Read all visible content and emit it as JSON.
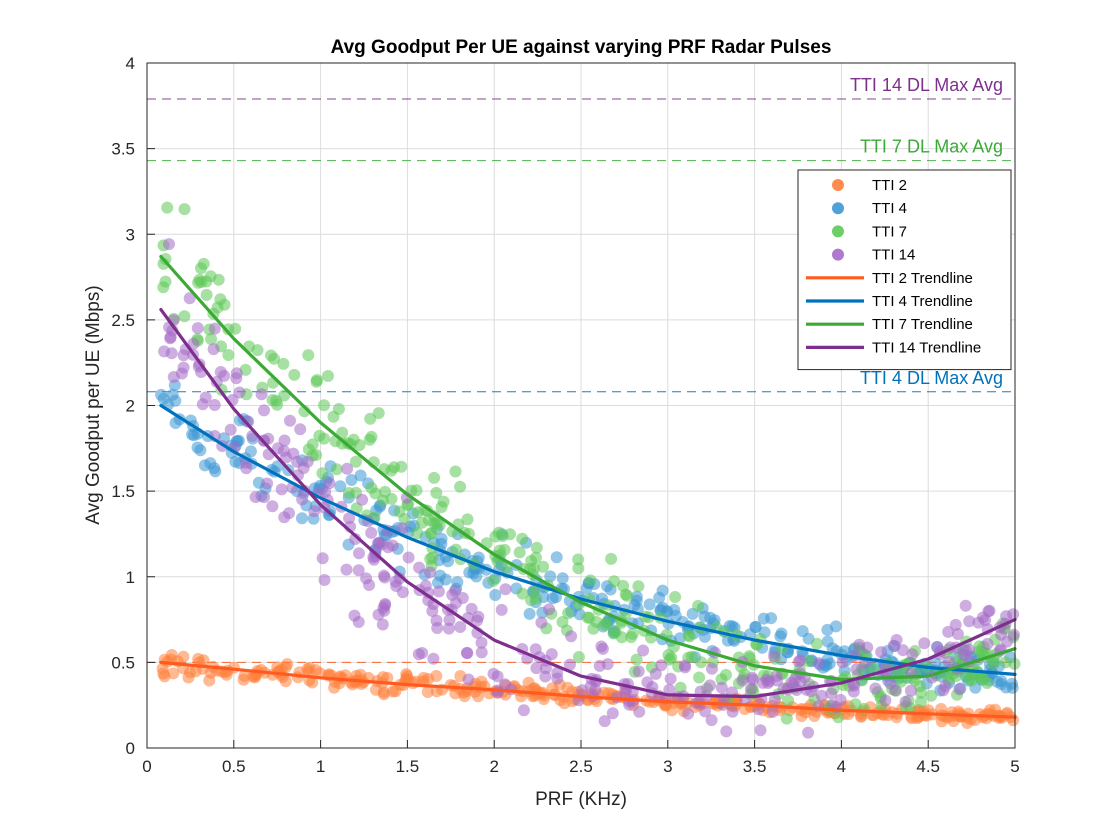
{
  "chart_data": {
    "type": "scatter",
    "title": "Avg Goodput Per UE against varying PRF Radar Pulses",
    "xlabel": "PRF (KHz)",
    "ylabel": "Avg Goodput per UE (Mbps)",
    "xlim": [
      0,
      5
    ],
    "ylim": [
      0,
      4
    ],
    "xticks": [
      "0",
      "0.5",
      "1",
      "1.5",
      "2",
      "2.5",
      "3",
      "3.5",
      "4",
      "4.5",
      "5"
    ],
    "yticks": [
      "0",
      "0.5",
      "1",
      "1.5",
      "2",
      "2.5",
      "3",
      "3.5",
      "4"
    ],
    "grid": true,
    "legend_position": "upper-right",
    "reference_lines": [
      {
        "label": "TTI 14 DL Max Avg",
        "y": 3.79,
        "color": "#7e2f8e"
      },
      {
        "label": "TTI 7 DL Max Avg",
        "y": 3.43,
        "color": "#3aaa35"
      },
      {
        "label": "TTI 4 DL Max Avg",
        "y": 2.08,
        "color": "#0072bd"
      },
      {
        "label": "",
        "y": 0.5,
        "color": "#ff5a1f"
      }
    ],
    "series": [
      {
        "name": "TTI 2",
        "kind": "scatter",
        "color": "#ff7f3a",
        "x": [
          0.08,
          0.25,
          0.5,
          0.75,
          1.0,
          1.25,
          1.5,
          1.75,
          2.0,
          2.25,
          2.5,
          2.75,
          3.0,
          3.25,
          3.5,
          3.75,
          4.0,
          4.25,
          4.5,
          4.75,
          5.0
        ],
        "y": [
          0.49,
          0.48,
          0.45,
          0.43,
          0.41,
          0.39,
          0.37,
          0.35,
          0.34,
          0.32,
          0.3,
          0.29,
          0.27,
          0.26,
          0.25,
          0.24,
          0.22,
          0.21,
          0.2,
          0.19,
          0.18
        ],
        "spread": 0.04
      },
      {
        "name": "TTI 4",
        "kind": "scatter",
        "color": "#3d97d3",
        "x": [
          0.08,
          0.25,
          0.5,
          0.75,
          1.0,
          1.25,
          1.5,
          1.75,
          2.0,
          2.25,
          2.5,
          2.75,
          3.0,
          3.25,
          3.5,
          3.75,
          4.0,
          4.25,
          4.5,
          4.75,
          5.0
        ],
        "y": [
          2.0,
          1.88,
          1.72,
          1.58,
          1.45,
          1.33,
          1.22,
          1.12,
          1.03,
          0.95,
          0.87,
          0.8,
          0.74,
          0.68,
          0.63,
          0.58,
          0.54,
          0.5,
          0.47,
          0.45,
          0.43
        ],
        "spread": 0.14
      },
      {
        "name": "TTI 7",
        "kind": "scatter",
        "color": "#5cc957",
        "x": [
          0.08,
          0.25,
          0.5,
          0.75,
          1.0,
          1.25,
          1.5,
          1.75,
          2.0,
          2.25,
          2.5,
          2.75,
          3.0,
          3.25,
          3.5,
          3.75,
          4.0,
          4.25,
          4.5,
          4.75,
          5.0
        ],
        "y": [
          2.87,
          2.66,
          2.38,
          2.13,
          1.89,
          1.67,
          1.47,
          1.29,
          1.13,
          0.98,
          0.85,
          0.74,
          0.63,
          0.55,
          0.48,
          0.43,
          0.4,
          0.39,
          0.42,
          0.48,
          0.58
        ],
        "spread": 0.22
      },
      {
        "name": "TTI 14",
        "kind": "scatter",
        "color": "#a66bc9",
        "x": [
          0.08,
          0.25,
          0.5,
          0.75,
          1.0,
          1.25,
          1.5,
          1.75,
          2.0,
          2.25,
          2.5,
          2.75,
          3.0,
          3.25,
          3.5,
          3.75,
          4.0,
          4.25,
          4.5,
          4.75,
          5.0
        ],
        "y": [
          2.56,
          2.31,
          1.98,
          1.68,
          1.41,
          1.17,
          0.96,
          0.78,
          0.63,
          0.51,
          0.42,
          0.35,
          0.31,
          0.3,
          0.31,
          0.34,
          0.38,
          0.44,
          0.52,
          0.62,
          0.75
        ],
        "spread": 0.24
      },
      {
        "name": "TTI 2 Trendline",
        "kind": "line",
        "color": "#ff5a1f",
        "x": [
          0.08,
          0.5,
          1.0,
          1.5,
          2.0,
          2.5,
          3.0,
          3.5,
          4.0,
          4.5,
          5.0
        ],
        "y": [
          0.5,
          0.46,
          0.41,
          0.37,
          0.34,
          0.3,
          0.27,
          0.25,
          0.22,
          0.2,
          0.18
        ]
      },
      {
        "name": "TTI 4 Trendline",
        "kind": "line",
        "color": "#0072bd",
        "x": [
          0.08,
          0.5,
          1.0,
          1.5,
          2.0,
          2.5,
          3.0,
          3.5,
          4.0,
          4.5,
          5.0
        ],
        "y": [
          2.0,
          1.73,
          1.46,
          1.23,
          1.03,
          0.87,
          0.74,
          0.63,
          0.54,
          0.47,
          0.43
        ]
      },
      {
        "name": "TTI 7 Trendline",
        "kind": "line",
        "color": "#3aaa35",
        "x": [
          0.08,
          0.5,
          1.0,
          1.5,
          2.0,
          2.5,
          3.0,
          3.5,
          4.0,
          4.5,
          5.0
        ],
        "y": [
          2.87,
          2.39,
          1.9,
          1.48,
          1.13,
          0.85,
          0.63,
          0.48,
          0.4,
          0.42,
          0.58
        ]
      },
      {
        "name": "TTI 14 Trendline",
        "kind": "line",
        "color": "#7e2f8e",
        "x": [
          0.08,
          0.5,
          1.0,
          1.5,
          2.0,
          2.5,
          3.0,
          3.5,
          4.0,
          4.5,
          5.0
        ],
        "y": [
          2.56,
          1.98,
          1.42,
          0.97,
          0.63,
          0.42,
          0.31,
          0.3,
          0.38,
          0.52,
          0.75
        ]
      }
    ]
  }
}
